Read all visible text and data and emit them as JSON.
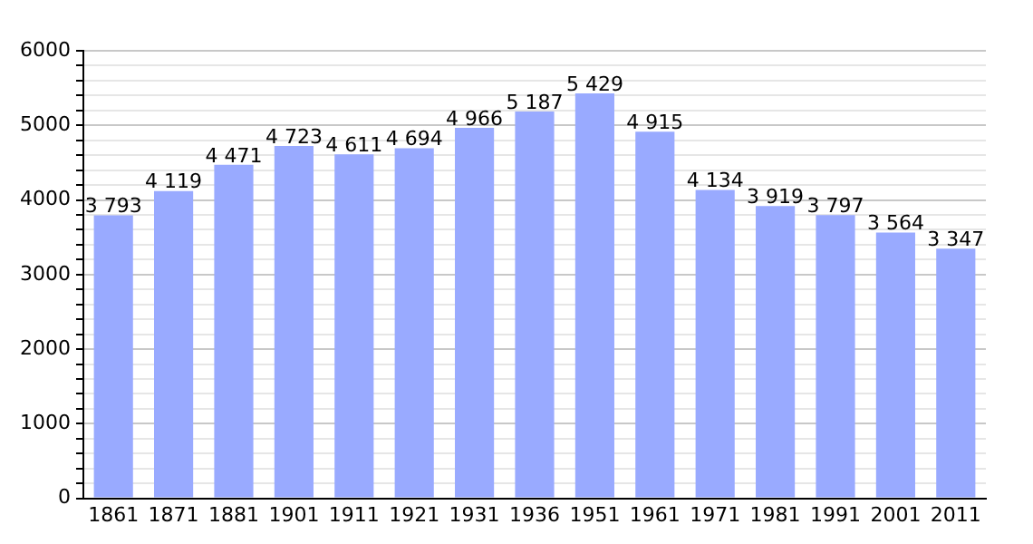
{
  "chart_data": {
    "type": "bar",
    "categories": [
      "1861",
      "1871",
      "1881",
      "1901",
      "1911",
      "1921",
      "1931",
      "1936",
      "1951",
      "1961",
      "1971",
      "1981",
      "1991",
      "2001",
      "2011"
    ],
    "values": [
      3793,
      4119,
      4471,
      4723,
      4611,
      4694,
      4966,
      5187,
      5429,
      4915,
      4134,
      3919,
      3797,
      3564,
      3347
    ],
    "value_labels": [
      "3 793",
      "4 119",
      "4 471",
      "4 723",
      "4 611",
      "4 694",
      "4 966",
      "5 187",
      "5 429",
      "4 915",
      "4 134",
      "3 919",
      "3 797",
      "3 564",
      "3 347"
    ],
    "color": "#99aaff",
    "ylim": [
      0,
      6000
    ],
    "yticks": [
      0,
      {
        "value": 200,
        "label": null
      },
      {
        "value": 400,
        "label": null
      },
      {
        "value": 600,
        "label": null
      },
      {
        "value": 800,
        "label": null
      },
      1000,
      {
        "value": 1200,
        "label": null
      },
      {
        "value": 1400,
        "label": null
      },
      {
        "value": 1600,
        "label": null
      },
      {
        "value": 1800,
        "label": null
      },
      2000,
      {
        "value": 2200,
        "label": null
      },
      {
        "value": 2400,
        "label": null
      },
      {
        "value": 2600,
        "label": null
      },
      {
        "value": 2800,
        "label": null
      },
      3000,
      {
        "value": 3200,
        "label": null
      },
      {
        "value": 3400,
        "label": null
      },
      {
        "value": 3600,
        "label": null
      },
      {
        "value": 3800,
        "label": null
      },
      4000,
      {
        "value": 4200,
        "label": null
      },
      {
        "value": 4400,
        "label": null
      },
      {
        "value": 4600,
        "label": null
      },
      {
        "value": 4800,
        "label": null
      },
      5000,
      {
        "value": 5200,
        "label": null
      },
      {
        "value": 5400,
        "label": null
      },
      {
        "value": 5600,
        "label": null
      },
      {
        "value": 5800,
        "label": null
      },
      6000
    ],
    "grid": "y"
  }
}
